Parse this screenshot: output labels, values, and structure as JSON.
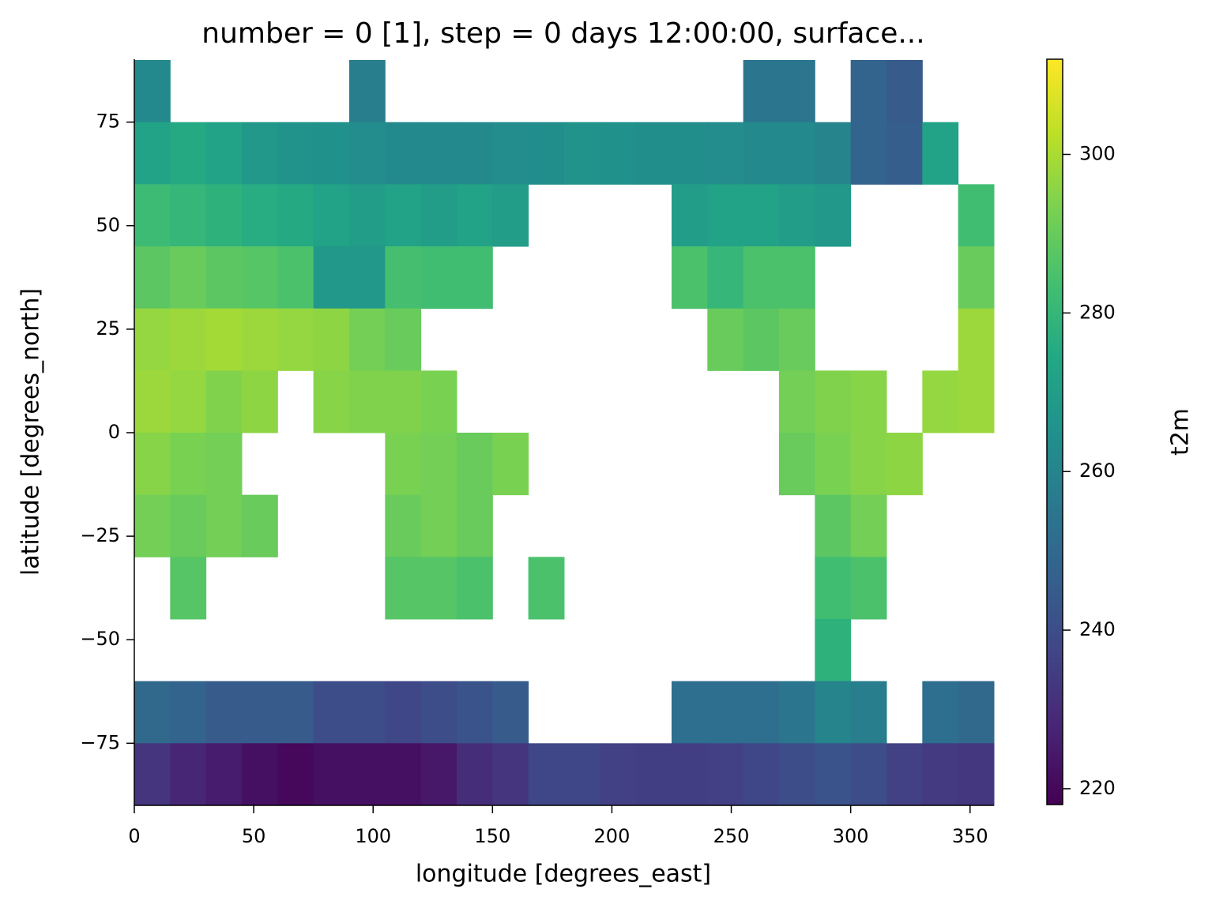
{
  "chart_data": {
    "type": "heatmap",
    "title": "number = 0 [1], step = 0 days 12:00:00, surface...",
    "xlabel": "longitude [degrees_east]",
    "ylabel": "latitude [degrees_north]",
    "colorbar_label": "t2m",
    "cmap": "viridis",
    "x": [
      7.5,
      22.5,
      37.5,
      52.5,
      67.5,
      82.5,
      97.5,
      112.5,
      127.5,
      142.5,
      157.5,
      172.5,
      187.5,
      202.5,
      217.5,
      232.5,
      247.5,
      262.5,
      277.5,
      292.5,
      307.5,
      322.5,
      337.5,
      352.5
    ],
    "y": [
      82.5,
      67.5,
      52.5,
      37.5,
      22.5,
      7.5,
      -7.5,
      -22.5,
      -37.5,
      -52.5,
      -67.5,
      -82.5
    ],
    "z": [
      [
        262,
        null,
        null,
        null,
        null,
        null,
        258,
        null,
        null,
        null,
        null,
        null,
        null,
        null,
        null,
        null,
        null,
        255,
        255,
        null,
        248,
        245,
        null,
        null
      ],
      [
        272,
        275,
        272,
        268,
        266,
        265,
        263,
        262,
        262,
        262,
        263,
        264,
        266,
        265,
        264,
        264,
        263,
        262,
        262,
        260,
        248,
        246,
        272,
        null
      ],
      [
        282,
        280,
        278,
        276,
        275,
        272,
        270,
        272,
        270,
        272,
        270,
        null,
        null,
        null,
        null,
        270,
        272,
        272,
        270,
        268,
        null,
        null,
        null,
        283
      ],
      [
        288,
        290,
        288,
        287,
        285,
        268,
        268,
        284,
        283,
        283,
        null,
        null,
        null,
        null,
        null,
        285,
        280,
        285,
        285,
        null,
        null,
        null,
        null,
        290
      ],
      [
        297,
        298,
        299,
        298,
        297,
        296,
        292,
        290,
        null,
        null,
        null,
        null,
        null,
        null,
        null,
        null,
        290,
        288,
        290,
        null,
        null,
        null,
        null,
        298
      ],
      [
        298,
        297,
        294,
        296,
        null,
        295,
        294,
        294,
        293,
        null,
        null,
        null,
        null,
        null,
        null,
        null,
        null,
        null,
        292,
        294,
        295,
        null,
        297,
        298
      ],
      [
        295,
        293,
        292,
        null,
        null,
        null,
        null,
        293,
        292,
        290,
        293,
        null,
        null,
        null,
        null,
        null,
        null,
        null,
        290,
        293,
        295,
        296,
        null,
        null
      ],
      [
        292,
        290,
        292,
        290,
        null,
        null,
        null,
        290,
        292,
        290,
        null,
        null,
        null,
        null,
        null,
        null,
        null,
        null,
        null,
        288,
        292,
        null,
        null,
        null
      ],
      [
        null,
        287,
        null,
        null,
        null,
        null,
        null,
        287,
        287,
        285,
        null,
        285,
        null,
        null,
        null,
        null,
        null,
        null,
        null,
        283,
        285,
        null,
        null,
        null
      ],
      [
        null,
        null,
        null,
        null,
        null,
        null,
        null,
        null,
        null,
        null,
        null,
        null,
        null,
        null,
        null,
        null,
        null,
        null,
        null,
        278,
        null,
        null,
        null,
        null
      ],
      [
        250,
        248,
        245,
        245,
        245,
        240,
        240,
        238,
        240,
        242,
        245,
        null,
        null,
        null,
        null,
        252,
        252,
        252,
        255,
        260,
        258,
        null,
        252,
        250
      ],
      [
        232,
        228,
        225,
        222,
        220,
        222,
        222,
        222,
        224,
        230,
        232,
        238,
        238,
        236,
        235,
        235,
        236,
        238,
        240,
        242,
        240,
        236,
        234,
        233
      ]
    ],
    "xlim": [
      0,
      360
    ],
    "ylim": [
      -90,
      90
    ],
    "clim": [
      218,
      312
    ],
    "xticks": [
      0,
      50,
      100,
      150,
      200,
      250,
      300,
      350
    ],
    "yticks": [
      {
        "value": -75,
        "label": "−75"
      },
      {
        "value": -50,
        "label": "−50"
      },
      {
        "value": -25,
        "label": "−25"
      },
      0,
      25,
      50,
      75
    ],
    "cticks": [
      220,
      240,
      260,
      280,
      300
    ]
  }
}
